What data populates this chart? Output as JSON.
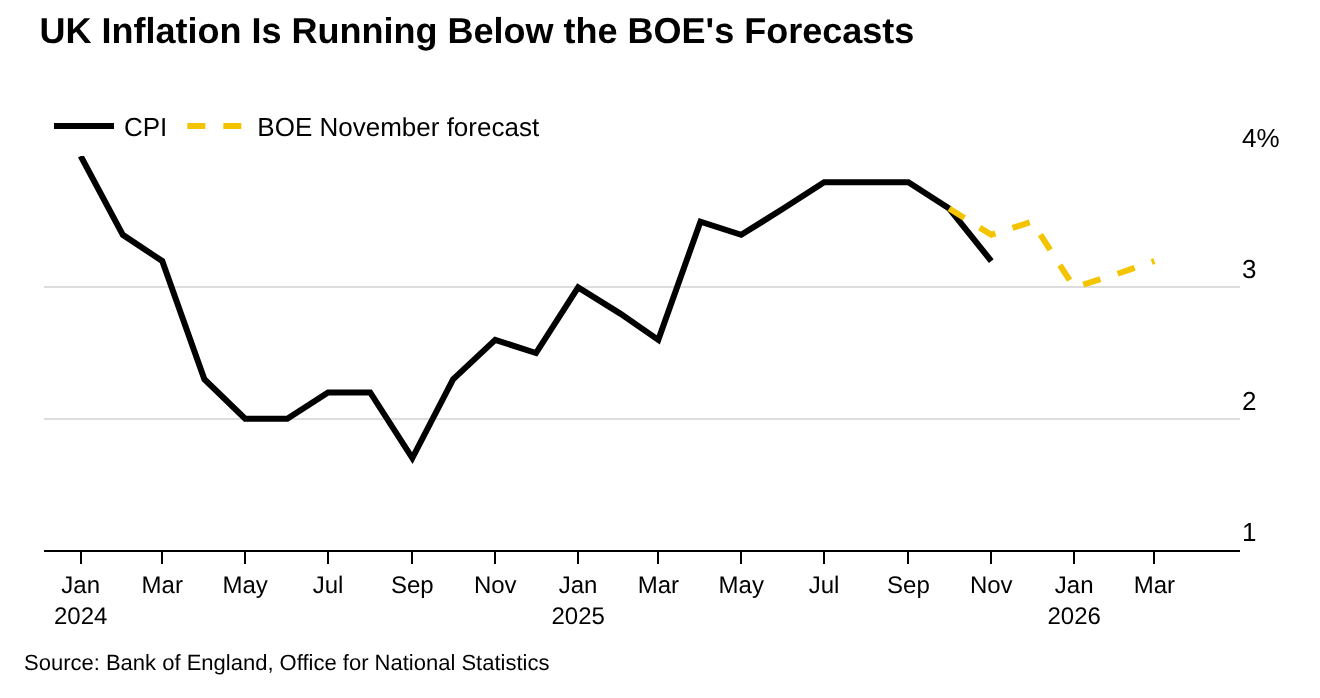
{
  "chart_data": {
    "type": "line",
    "title": "UK Inflation Is Running Below the BOE's Forecasts",
    "series": [
      {
        "name": "CPI",
        "color": "#000000",
        "line_style": "solid",
        "x": [
          "2024-01",
          "2024-02",
          "2024-03",
          "2024-04",
          "2024-05",
          "2024-06",
          "2024-07",
          "2024-08",
          "2024-09",
          "2024-10",
          "2024-11",
          "2024-12",
          "2025-01",
          "2025-02",
          "2025-03",
          "2025-04",
          "2025-05",
          "2025-06",
          "2025-07",
          "2025-08",
          "2025-09",
          "2025-10",
          "2025-11"
        ],
        "values": [
          4.0,
          3.4,
          3.2,
          2.3,
          2.0,
          2.0,
          2.2,
          2.2,
          1.7,
          2.3,
          2.6,
          2.5,
          3.0,
          2.8,
          2.6,
          3.5,
          3.4,
          3.6,
          3.8,
          3.8,
          3.8,
          3.6,
          3.2
        ]
      },
      {
        "name": "BOE November forecast",
        "color": "#f5c400",
        "line_style": "dashed",
        "x": [
          "2025-10",
          "2025-11",
          "2025-12",
          "2026-01",
          "2026-02",
          "2026-03"
        ],
        "values": [
          3.6,
          3.4,
          3.5,
          3.0,
          3.1,
          3.2
        ]
      }
    ],
    "xlim": [
      "2023-12-05",
      "2026-05-03"
    ],
    "xticks": [
      {
        "value": "2024-01",
        "label": "Jan\n2024"
      },
      {
        "value": "2024-03",
        "label": "Mar"
      },
      {
        "value": "2024-05",
        "label": "May"
      },
      {
        "value": "2024-07",
        "label": "Jul"
      },
      {
        "value": "2024-09",
        "label": "Sep"
      },
      {
        "value": "2024-11",
        "label": "Nov"
      },
      {
        "value": "2025-01",
        "label": "Jan\n2025"
      },
      {
        "value": "2025-03",
        "label": "Mar"
      },
      {
        "value": "2025-05",
        "label": "May"
      },
      {
        "value": "2025-07",
        "label": "Jul"
      },
      {
        "value": "2025-09",
        "label": "Sep"
      },
      {
        "value": "2025-11",
        "label": "Nov"
      },
      {
        "value": "2026-01",
        "label": "Jan\n2026"
      },
      {
        "value": "2026-03",
        "label": "Mar"
      }
    ],
    "ylim": [
      1,
      4
    ],
    "yticks": [
      {
        "value": 1,
        "label": "1"
      },
      {
        "value": 2,
        "label": "2"
      },
      {
        "value": 3,
        "label": "3"
      },
      {
        "value": 4,
        "label": "4%"
      }
    ],
    "grid": "y",
    "legend": "top left",
    "marker": "none",
    "annotations": [
      "Source: Bank of England, Office for National Statistics"
    ]
  }
}
